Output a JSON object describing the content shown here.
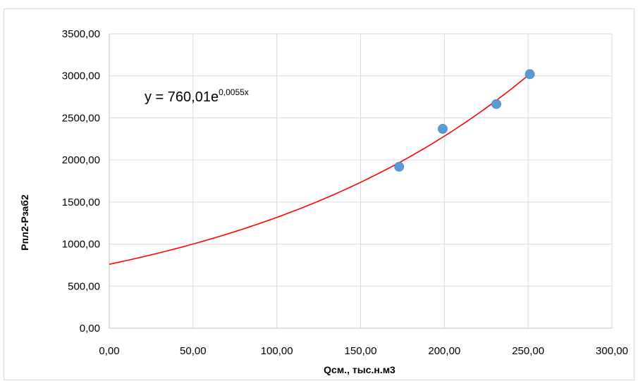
{
  "chart_data": {
    "type": "scatter",
    "title": "",
    "xlabel": "Qсм., тыс.н.м3",
    "ylabel": "Рпл2-Рзаб2",
    "xlim": [
      0,
      300
    ],
    "ylim": [
      0,
      3500
    ],
    "x_ticks": [
      "0,00",
      "50,00",
      "100,00",
      "150,00",
      "200,00",
      "250,00",
      "300,00"
    ],
    "y_ticks": [
      "0,00",
      "500,00",
      "1000,00",
      "1500,00",
      "2000,00",
      "2500,00",
      "3000,00",
      "3500,00"
    ],
    "grid": true,
    "series": [
      {
        "x": [
          173,
          199,
          231,
          251
        ],
        "y": [
          1920,
          2370,
          2665,
          3020
        ],
        "color": "#5b9bd5"
      }
    ],
    "trendline": {
      "type": "exponential",
      "a": 760.01,
      "b": 0.0055,
      "x_range": [
        0,
        251
      ],
      "color": "#ff0000",
      "equation_base": "y = 760,01e",
      "equation_exponent": "0,0055x"
    }
  }
}
